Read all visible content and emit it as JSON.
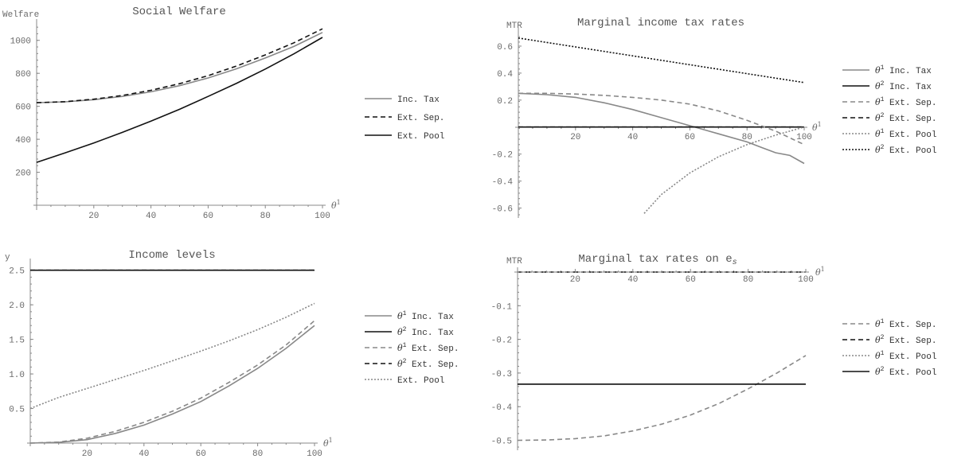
{
  "chart_data": [
    {
      "type": "line",
      "title": "Social Welfare",
      "ylabel": "Welfare",
      "xlabel": "θ1",
      "xlim": [
        0,
        100
      ],
      "ylim": [
        0,
        1100
      ],
      "xticks": [
        20,
        40,
        60,
        80,
        100
      ],
      "yticks": [
        200,
        400,
        600,
        800,
        1000
      ],
      "legend_position": "right",
      "series": [
        {
          "name": "Inc. Tax",
          "style": "solid",
          "color": "#888888",
          "x": [
            0,
            10,
            20,
            30,
            40,
            50,
            60,
            70,
            80,
            90,
            100
          ],
          "y": [
            622,
            627,
            640,
            660,
            688,
            725,
            772,
            828,
            893,
            963,
            1048
          ]
        },
        {
          "name": "Ext. Sep.",
          "style": "dashed",
          "color": "#111111",
          "x": [
            0,
            10,
            20,
            30,
            40,
            50,
            60,
            70,
            80,
            90,
            100
          ],
          "y": [
            622,
            628,
            643,
            666,
            697,
            737,
            786,
            845,
            912,
            985,
            1070
          ]
        },
        {
          "name": "Ext. Pool",
          "style": "solid",
          "color": "#111111",
          "x": [
            0,
            10,
            20,
            30,
            40,
            50,
            60,
            70,
            80,
            90,
            100
          ],
          "y": [
            260,
            318,
            378,
            442,
            510,
            582,
            660,
            740,
            826,
            918,
            1018
          ]
        }
      ]
    },
    {
      "type": "line",
      "title": "Marginal income tax rates",
      "ylabel": "MTR",
      "xlabel": "θ1",
      "xlim": [
        0,
        100
      ],
      "ylim": [
        -0.65,
        0.7
      ],
      "xticks": [
        20,
        40,
        60,
        80,
        100
      ],
      "yticks": [
        -0.6,
        -0.4,
        -0.2,
        0.2,
        0.4,
        0.6
      ],
      "legend_position": "right",
      "series": [
        {
          "name": "θ1 Inc. Tax",
          "name_base": "Inc. Tax",
          "name_sup": "1",
          "style": "solid",
          "color": "#888888",
          "x": [
            0,
            10,
            20,
            30,
            40,
            50,
            60,
            70,
            80,
            85,
            90,
            95,
            100
          ],
          "y": [
            0.25,
            0.24,
            0.22,
            0.18,
            0.13,
            0.07,
            0.01,
            -0.05,
            -0.11,
            -0.15,
            -0.19,
            -0.21,
            -0.27
          ]
        },
        {
          "name": "θ2 Inc. Tax",
          "name_base": "Inc. Tax",
          "name_sup": "2",
          "style": "solid",
          "color": "#111111",
          "x": [
            0,
            100
          ],
          "y": [
            0,
            0
          ]
        },
        {
          "name": "θ1 Ext. Sep.",
          "name_base": "Ext. Sep.",
          "name_sup": "1",
          "style": "dashed",
          "color": "#888888",
          "x": [
            0,
            10,
            20,
            30,
            40,
            50,
            60,
            70,
            80,
            90,
            100
          ],
          "y": [
            0.25,
            0.25,
            0.245,
            0.235,
            0.22,
            0.2,
            0.17,
            0.12,
            0.05,
            -0.03,
            -0.13
          ]
        },
        {
          "name": "θ2 Ext. Sep.",
          "name_base": "Ext. Sep.",
          "name_sup": "2",
          "style": "dashed",
          "color": "#111111",
          "x": [
            0,
            100
          ],
          "y": [
            0,
            0
          ]
        },
        {
          "name": "θ1 Ext. Pool",
          "name_base": "Ext. Pool",
          "name_sup": "1",
          "style": "dotted",
          "color": "#888888",
          "x": [
            44,
            50,
            60,
            70,
            80,
            90,
            100
          ],
          "y": [
            -0.64,
            -0.5,
            -0.34,
            -0.22,
            -0.13,
            -0.06,
            0.0
          ]
        },
        {
          "name": "θ2 Ext. Pool",
          "name_base": "Ext. Pool",
          "name_sup": "2",
          "style": "dotted",
          "color": "#111111",
          "x": [
            0,
            100
          ],
          "y": [
            0.66,
            0.33
          ]
        }
      ]
    },
    {
      "type": "line",
      "title": "Income levels",
      "ylabel": "y",
      "xlabel": "θ1",
      "xlim": [
        0,
        100
      ],
      "ylim": [
        0,
        2.6
      ],
      "xticks": [
        20,
        40,
        60,
        80,
        100
      ],
      "yticks": [
        0.5,
        1.0,
        1.5,
        2.0,
        2.5
      ],
      "ytick_labels": [
        "0.5",
        "1.0",
        "1.5",
        "2.0",
        "2.5"
      ],
      "legend_position": "right",
      "series": [
        {
          "name": "θ1 Inc. Tax",
          "name_base": "Inc. Tax",
          "name_sup": "1",
          "style": "solid",
          "color": "#888888",
          "x": [
            0,
            10,
            20,
            30,
            40,
            50,
            60,
            70,
            80,
            90,
            100
          ],
          "y": [
            0.0,
            0.01,
            0.05,
            0.14,
            0.26,
            0.42,
            0.6,
            0.83,
            1.08,
            1.37,
            1.7
          ]
        },
        {
          "name": "θ2 Inc. Tax",
          "name_base": "Inc. Tax",
          "name_sup": "2",
          "style": "solid",
          "color": "#111111",
          "x": [
            0,
            100
          ],
          "y": [
            2.5,
            2.5
          ]
        },
        {
          "name": "θ1 Ext. Sep.",
          "name_base": "Ext. Sep.",
          "name_sup": "1",
          "style": "dashed",
          "color": "#888888",
          "x": [
            0,
            10,
            20,
            30,
            40,
            50,
            60,
            70,
            80,
            90,
            100
          ],
          "y": [
            0.0,
            0.015,
            0.07,
            0.17,
            0.3,
            0.46,
            0.65,
            0.88,
            1.13,
            1.42,
            1.77
          ]
        },
        {
          "name": "θ2 Ext. Sep.",
          "name_base": "Ext. Sep.",
          "name_sup": "2",
          "style": "dashed",
          "color": "#111111",
          "x": [
            0,
            100
          ],
          "y": [
            2.5,
            2.5
          ]
        },
        {
          "name": "Ext. Pool",
          "style": "dotted",
          "color": "#888888",
          "x": [
            0,
            10,
            20,
            30,
            40,
            50,
            60,
            70,
            80,
            90,
            100
          ],
          "y": [
            0.5,
            0.66,
            0.79,
            0.92,
            1.05,
            1.19,
            1.33,
            1.48,
            1.64,
            1.82,
            2.02
          ]
        }
      ]
    },
    {
      "type": "line",
      "title": "Marginal tax rates on e",
      "title_sub": "s",
      "ylabel": "MTR",
      "xlabel": "θ1",
      "xlim": [
        0,
        100
      ],
      "ylim": [
        -0.52,
        0.0
      ],
      "xaxis_at_top": true,
      "xticks": [
        20,
        40,
        60,
        80,
        100
      ],
      "yticks": [
        -0.5,
        -0.4,
        -0.3,
        -0.2,
        -0.1
      ],
      "legend_position": "right",
      "series": [
        {
          "name": "θ1 Ext. Sep.",
          "name_base": "Ext. Sep.",
          "name_sup": "1",
          "style": "dashed",
          "color": "#888888",
          "x": [
            0,
            10,
            20,
            30,
            40,
            50,
            60,
            70,
            80,
            90,
            100
          ],
          "y": [
            -0.5,
            -0.499,
            -0.495,
            -0.487,
            -0.472,
            -0.452,
            -0.425,
            -0.39,
            -0.347,
            -0.3,
            -0.248
          ]
        },
        {
          "name": "θ2 Ext. Sep.",
          "name_base": "Ext. Sep.",
          "name_sup": "2",
          "style": "dashed",
          "color": "#111111",
          "x": [
            0,
            100
          ],
          "y": [
            0,
            0
          ]
        },
        {
          "name": "θ1 Ext. Pool",
          "name_base": "Ext. Pool",
          "name_sup": "1",
          "style": "dotted",
          "color": "#888888",
          "x": [
            0,
            100
          ],
          "y": [
            0,
            0
          ]
        },
        {
          "name": "θ2 Ext. Pool",
          "name_base": "Ext. Pool",
          "name_sup": "2",
          "style": "solid",
          "color": "#111111",
          "x": [
            0,
            100
          ],
          "y": [
            -0.333,
            -0.333
          ]
        }
      ]
    }
  ]
}
